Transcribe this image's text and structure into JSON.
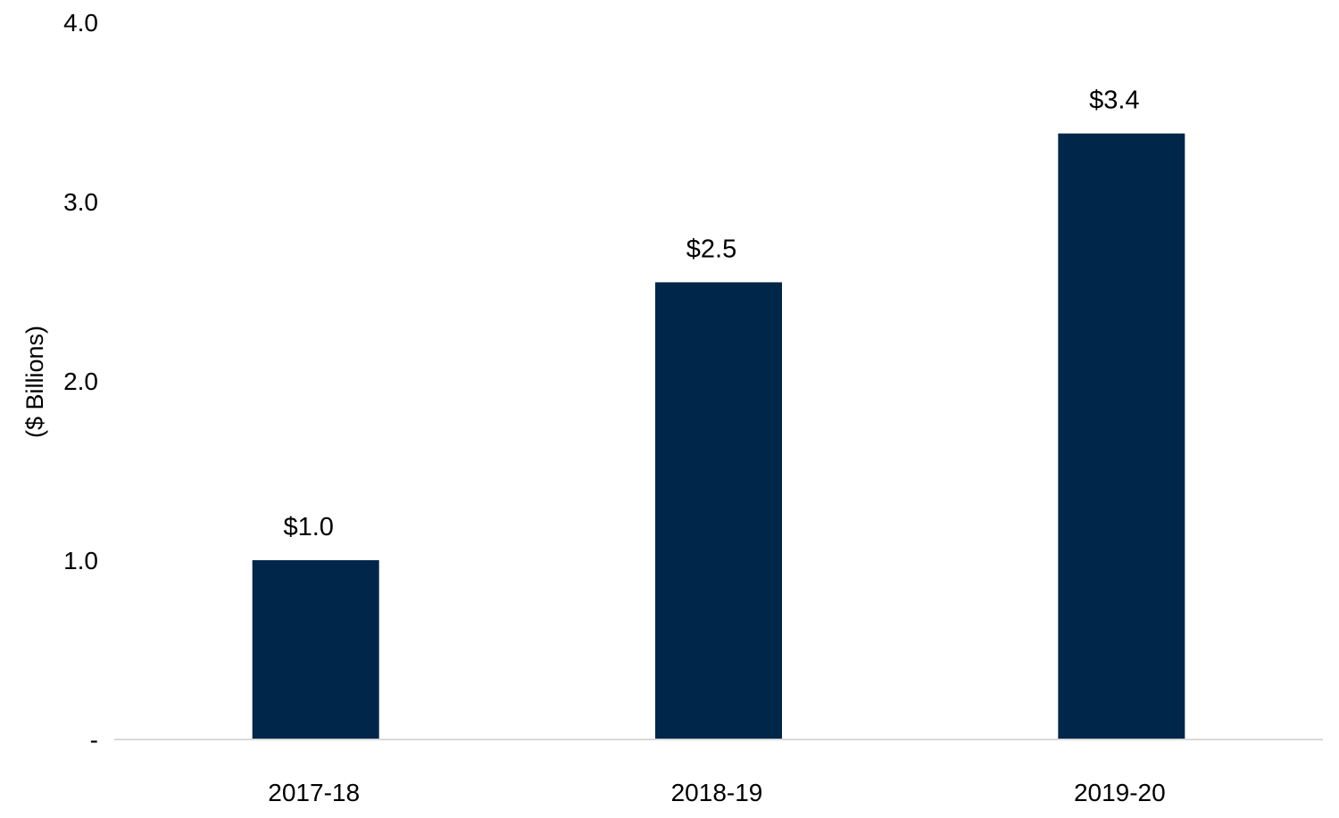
{
  "chart_data": {
    "type": "bar",
    "categories": [
      "2017-18",
      "2018-19",
      "2019-20"
    ],
    "values": [
      1.0,
      2.55,
      3.38
    ],
    "data_labels": [
      "$1.0",
      "$2.5",
      "$3.4"
    ],
    "ylabel": "($ Billions)",
    "ylim": [
      0,
      4.0
    ],
    "yticks": [
      {
        "value": 0,
        "label": "-"
      },
      {
        "value": 1.0,
        "label": "1.0"
      },
      {
        "value": 2.0,
        "label": "2.0"
      },
      {
        "value": 3.0,
        "label": "3.0"
      },
      {
        "value": 4.0,
        "label": "4.0"
      }
    ],
    "grid": false,
    "legend": "none",
    "colors": {
      "bar": "#002649",
      "axis": "#d9d9d9",
      "text": "#000000"
    }
  }
}
